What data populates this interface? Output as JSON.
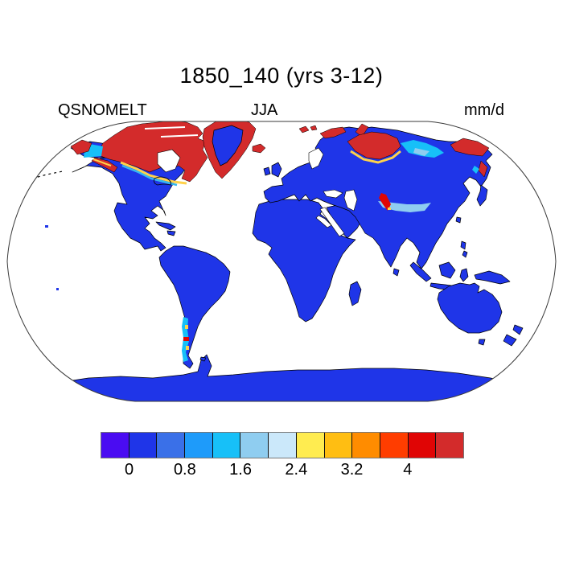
{
  "title": "1850_140 (yrs 3-12)",
  "header": {
    "variable": "QSNOMELT",
    "season": "JJA",
    "units": "mm/d"
  },
  "colorbar": {
    "colors": [
      "#4a0cf2",
      "#1f35e8",
      "#3a70e8",
      "#1e9bfa",
      "#17c0f8",
      "#8fcdf0",
      "#cbe8fa",
      "#ffec50",
      "#ffbe12",
      "#ff8c00",
      "#ff3d00",
      "#e00505",
      "#d32b2b"
    ],
    "tick_labels": [
      "0",
      "0.8",
      "1.6",
      "2.4",
      "3.2",
      "4"
    ],
    "tick_boundaries": [
      1,
      3,
      5,
      7,
      9,
      11
    ]
  },
  "chart_data": {
    "type": "heatmap",
    "title": "1850_140 (yrs 3-12)",
    "variable": "QSNOMELT",
    "season": "JJA",
    "units": "mm/d",
    "geometry": "global world map, robinson-like oval outline, white ocean (no data)",
    "colorbar_levels": [
      0,
      0.4,
      0.8,
      1.2,
      1.6,
      2.0,
      2.4,
      2.8,
      3.2,
      3.6,
      4.0,
      4.4
    ],
    "colorbar_colors": [
      "#4a0cf2",
      "#1f35e8",
      "#3a70e8",
      "#1e9bfa",
      "#17c0f8",
      "#8fcdf0",
      "#cbe8fa",
      "#ffec50",
      "#ffbe12",
      "#ff8c00",
      "#ff3d00",
      "#e00505",
      "#d32b2b"
    ],
    "regions": [
      {
        "region": "Most land surfaces (mid and low latitudes, Antarctica)",
        "value_mm_d": "0 to 0.4"
      },
      {
        "region": "Canadian Arctic Archipelago and land around Hudson Bay",
        "value_mm_d": "greater than 4.4"
      },
      {
        "region": "Greenland coastal margins",
        "value_mm_d": "greater than 4.4"
      },
      {
        "region": "Greenland interior",
        "value_mm_d": "0 to 0.4"
      },
      {
        "region": "Arctic Siberia coast (Taymyr, Novaya Zemlya, Chukotka)",
        "value_mm_d": "greater than 4"
      },
      {
        "region": "Western and southern Alaska",
        "value_mm_d": "2 to greater than 4"
      },
      {
        "region": "Northern Scandinavia, Svalbard, Iceland",
        "value_mm_d": "greater than 4"
      },
      {
        "region": "Tibetan Plateau / Himalaya streak",
        "value_mm_d": "0.8 to greater than 4"
      },
      {
        "region": "Patagonian Andes streak",
        "value_mm_d": "0.8 to greater than 4"
      },
      {
        "region": "Fringes around melt maxima",
        "value_mm_d": "0.8 to 3.6 (cyan, yellow, orange bands)"
      }
    ]
  }
}
